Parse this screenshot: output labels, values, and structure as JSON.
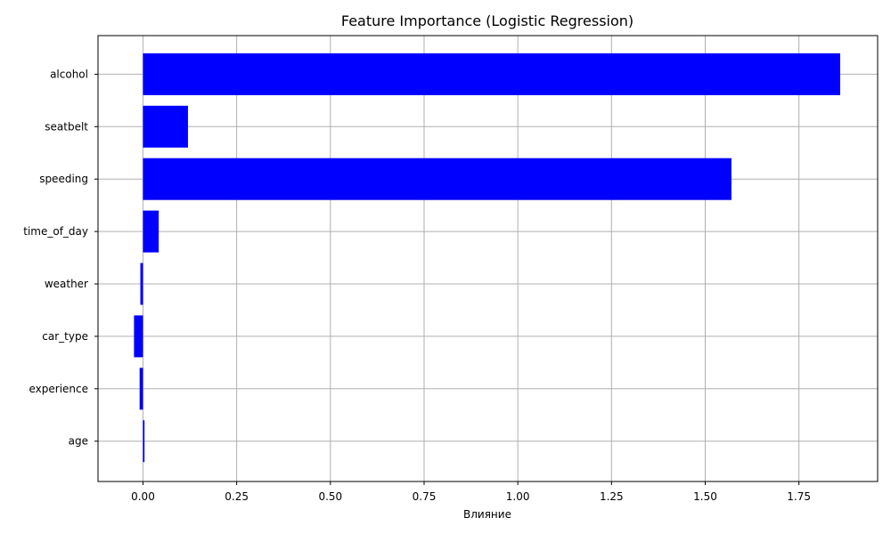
{
  "chart_data": {
    "type": "bar",
    "orientation": "horizontal",
    "title": "Feature Importance (Logistic Regression)",
    "xlabel": "Влияние",
    "ylabel": "",
    "categories": [
      "alcohol",
      "seatbelt",
      "speeding",
      "time_of_day",
      "weather",
      "car_type",
      "experience",
      "age"
    ],
    "values": [
      1.86,
      0.12,
      1.57,
      0.042,
      -0.007,
      -0.024,
      -0.009,
      0.004
    ],
    "xlim": [
      -0.12,
      1.96
    ],
    "x_ticks": [
      0.0,
      0.25,
      0.5,
      0.75,
      1.0,
      1.25,
      1.5,
      1.75
    ],
    "x_tick_labels": [
      "0.00",
      "0.25",
      "0.50",
      "0.75",
      "1.00",
      "1.25",
      "1.50",
      "1.75"
    ],
    "grid": true,
    "bar_color": "#0000ff"
  }
}
